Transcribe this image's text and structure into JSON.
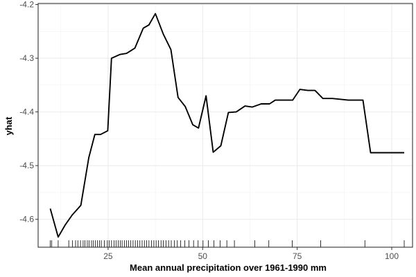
{
  "chart_data": {
    "type": "line",
    "title": "",
    "xlabel": "Mean annual precipitation over 1961-1990 mm",
    "ylabel": "yhat",
    "xlim": [
      6.5,
      105.5
    ],
    "ylim": [
      -4.652,
      -4.198
    ],
    "x_ticks": [
      25,
      50,
      75,
      100
    ],
    "y_ticks": [
      -4.2,
      -4.3,
      -4.4,
      -4.5,
      -4.6
    ],
    "x_tick_labels": [
      "25",
      "50",
      "75",
      "100"
    ],
    "y_tick_labels": [
      "-4.2",
      "-4.3",
      "-4.4",
      "-4.5",
      "-4.6"
    ],
    "grid": true,
    "rug": true,
    "series": [
      {
        "x": [
          9.7,
          11.8,
          13.7,
          15.5,
          17.8,
          19.9,
          21.5,
          23.0,
          24.9,
          25.9,
          28.1,
          29.9,
          32.1,
          34.3,
          35.8,
          37.5,
          39.6,
          41.6,
          43.5,
          45.4,
          47.4,
          48.9,
          50.9,
          52.8,
          54.8,
          56.8,
          58.9,
          61.2,
          63.1,
          65.5,
          67.7,
          69.2,
          71.5,
          73.8,
          75.7,
          77.8,
          79.7,
          81.8,
          84.3,
          88.5,
          92.4,
          94.4,
          98.7,
          103.3
        ],
        "y": [
          -4.58,
          -4.633,
          -4.61,
          -4.592,
          -4.574,
          -4.485,
          -4.442,
          -4.442,
          -4.435,
          -4.3,
          -4.293,
          -4.291,
          -4.281,
          -4.244,
          -4.238,
          -4.217,
          -4.255,
          -4.284,
          -4.373,
          -4.39,
          -4.424,
          -4.43,
          -4.37,
          -4.475,
          -4.463,
          -4.401,
          -4.4,
          -4.389,
          -4.391,
          -4.385,
          -4.385,
          -4.378,
          -4.378,
          -4.378,
          -4.358,
          -4.36,
          -4.36,
          -4.375,
          -4.375,
          -4.378,
          -4.378,
          -4.476,
          -4.476,
          -4.476
        ]
      }
    ],
    "rug_x": [
      9.7,
      10.1,
      11.8,
      14.6,
      15.6,
      16.4,
      17.0,
      17.7,
      18.4,
      18.9,
      19.5,
      20.0,
      20.6,
      21.1,
      21.6,
      22.2,
      22.7,
      23.2,
      24.0,
      24.8,
      25.3,
      25.9,
      26.6,
      27.1,
      27.7,
      28.2,
      28.7,
      29.3,
      29.9,
      30.4,
      31.0,
      31.6,
      32.2,
      32.8,
      33.4,
      34.0,
      34.6,
      35.2,
      35.8,
      36.5,
      37.1,
      37.7,
      38.3,
      39.0,
      39.6,
      40.3,
      41.0,
      41.7,
      42.5,
      43.3,
      44.2,
      45.3,
      46.4,
      47.6,
      48.8,
      50.1,
      51.5,
      53.0,
      54.6,
      56.4,
      58.4,
      63.8,
      67.5,
      73.7,
      81.2,
      92.9,
      103.3
    ]
  }
}
